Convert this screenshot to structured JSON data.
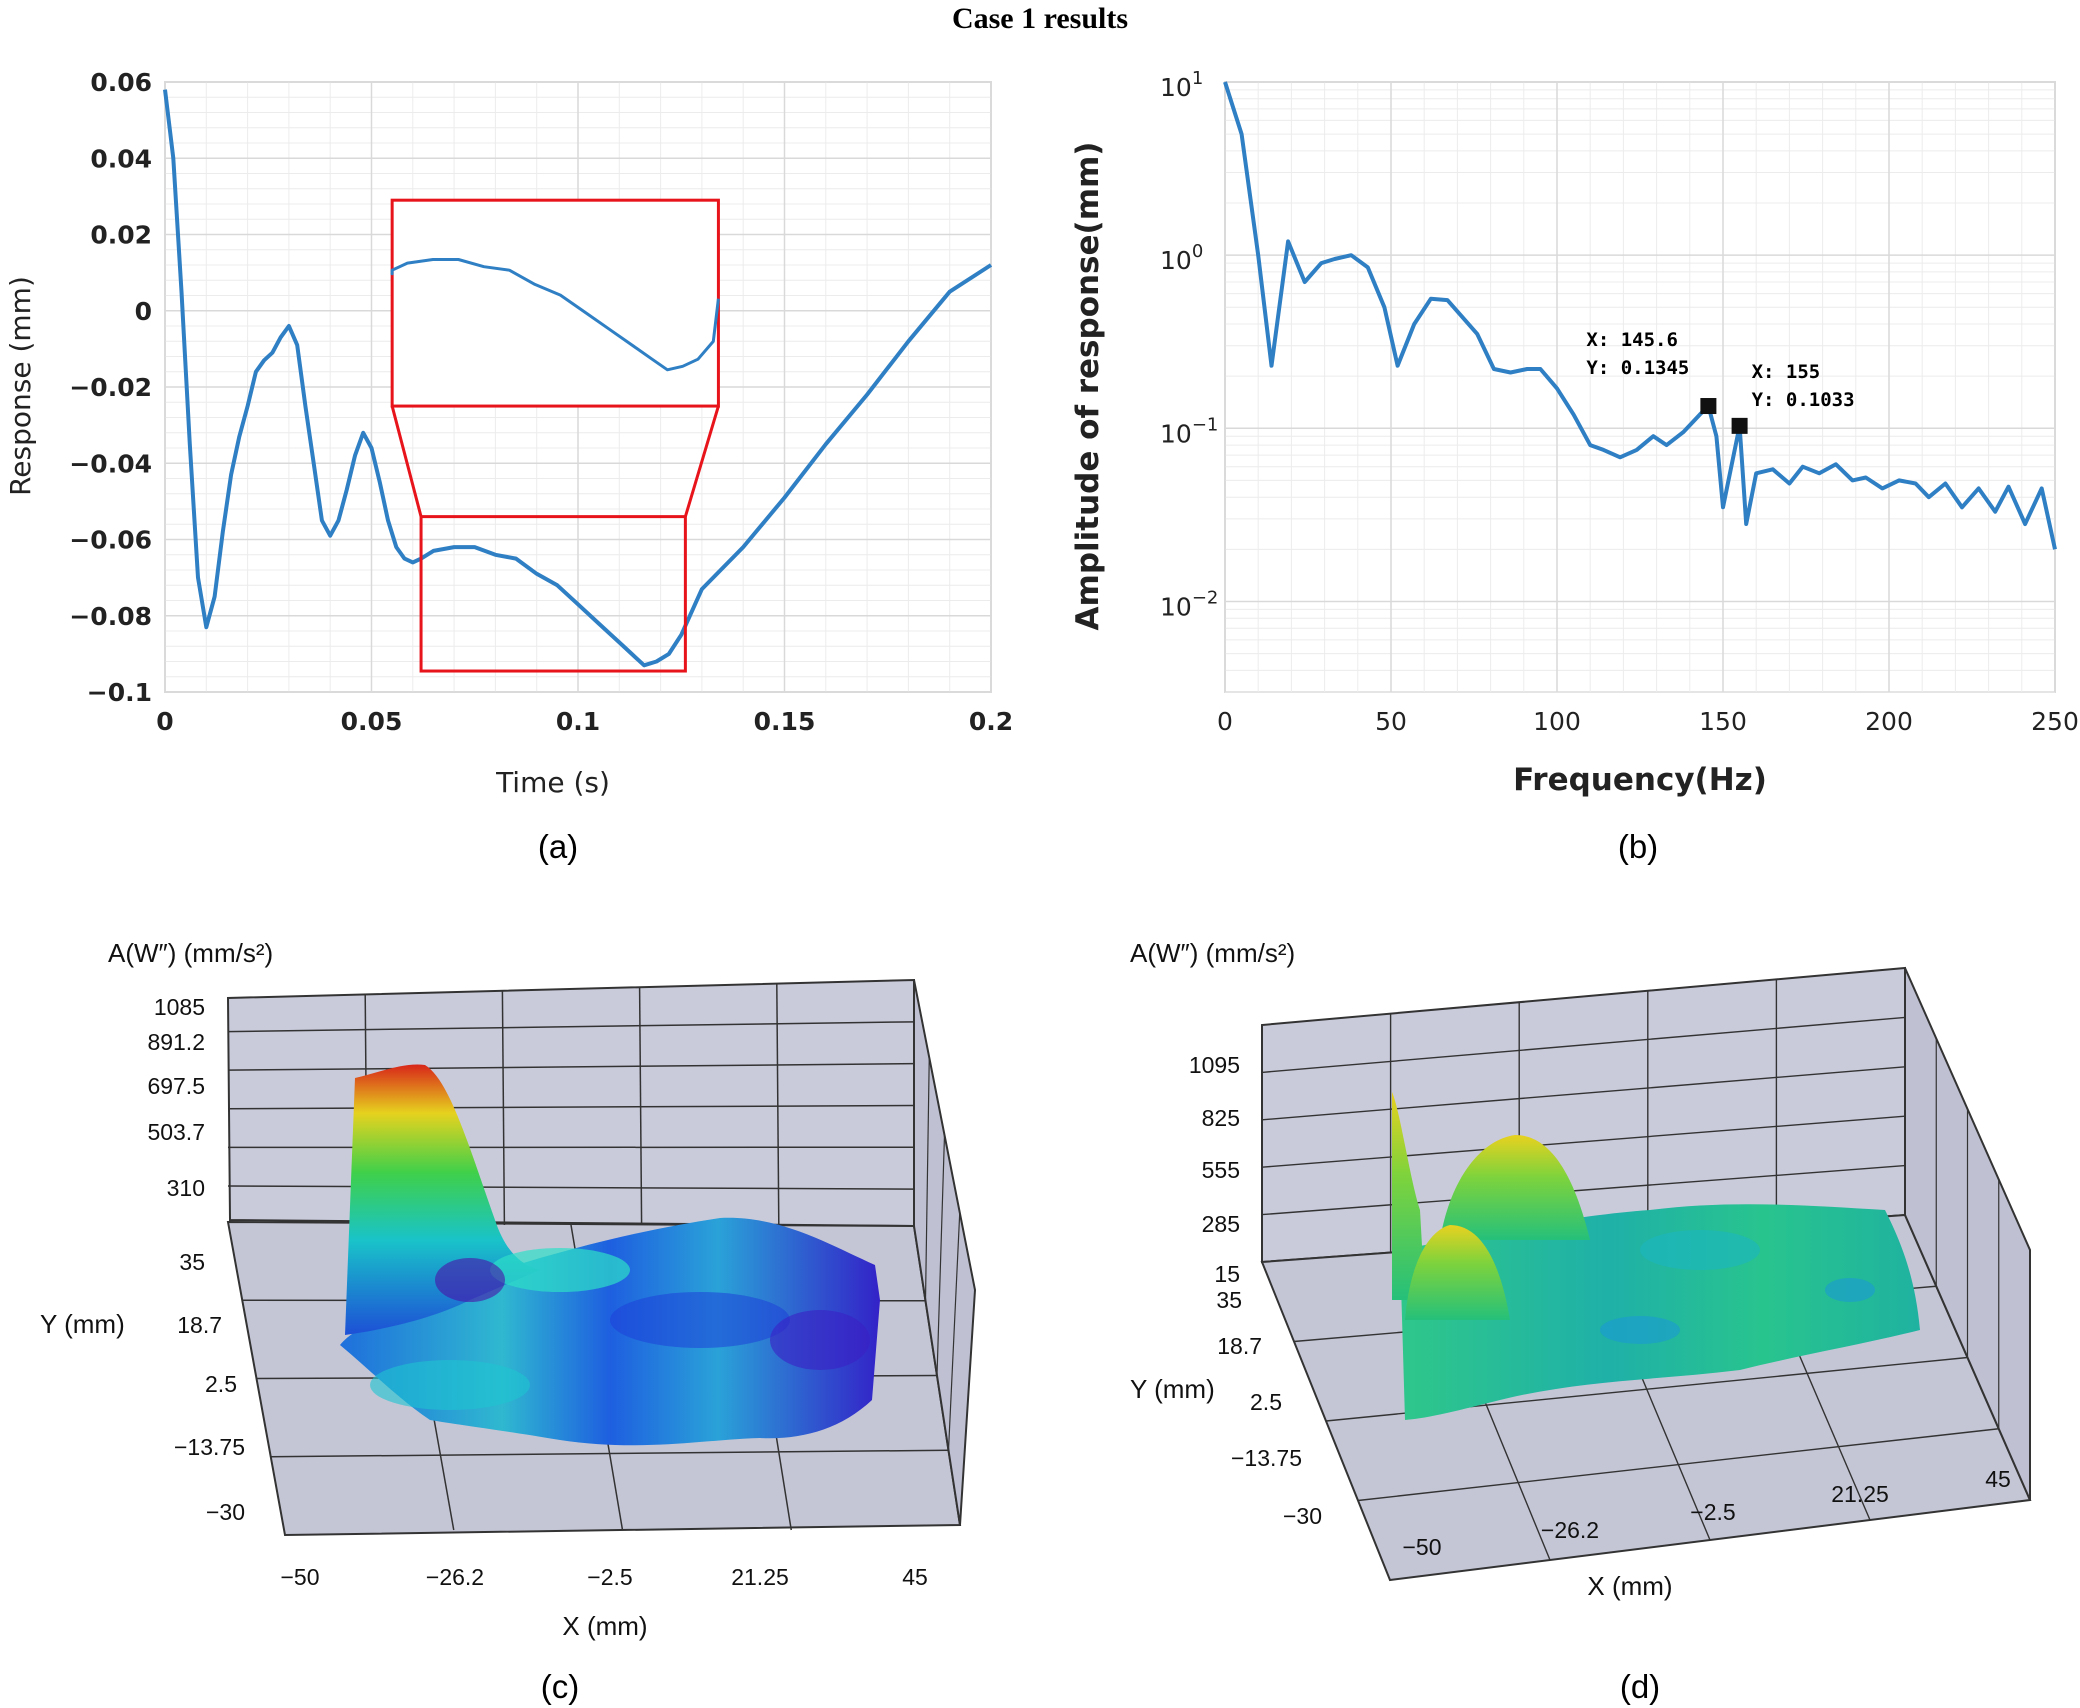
{
  "figure_title": "Case 1 results",
  "panels": {
    "a": {
      "label": "(a)"
    },
    "b": {
      "label": "(b)"
    },
    "c": {
      "label": "(c)"
    },
    "d": {
      "label": "(d)"
    }
  },
  "colors": {
    "line": "#2f7fc4",
    "zoom_box": "#e8141b",
    "grid": "#d9d9d9",
    "box3d_fill": "#c9cbdb",
    "box3d_edge": "#222222"
  },
  "chart_data": [
    {
      "id": "a",
      "type": "line",
      "xlabel": "Time (s)",
      "ylabel": "Response (mm)",
      "xlim": [
        0,
        0.2
      ],
      "ylim": [
        -0.1,
        0.06
      ],
      "xticks": [
        "0",
        "0.05",
        "0.1",
        "0.15",
        "0.2"
      ],
      "xtick_values": [
        0,
        0.05,
        0.1,
        0.15,
        0.2
      ],
      "yticks": [
        "0.06",
        "0.04",
        "0.02",
        "0",
        "−0.02",
        "−0.04",
        "−0.06",
        "−0.08",
        "−0.1"
      ],
      "ytick_values": [
        0.06,
        0.04,
        0.02,
        0,
        -0.02,
        -0.04,
        -0.06,
        -0.08,
        -0.1
      ],
      "grid": true,
      "series": [
        {
          "x": [
            0,
            0.002,
            0.004,
            0.006,
            0.008,
            0.01,
            0.012,
            0.014,
            0.016,
            0.018,
            0.02,
            0.022,
            0.024,
            0.026,
            0.028,
            0.03,
            0.032,
            0.034,
            0.036,
            0.038,
            0.04,
            0.042,
            0.044,
            0.046,
            0.048,
            0.05,
            0.052,
            0.054,
            0.056,
            0.058,
            0.06,
            0.062,
            0.065,
            0.07,
            0.075,
            0.08,
            0.085,
            0.09,
            0.095,
            0.1,
            0.105,
            0.11,
            0.113,
            0.116,
            0.119,
            0.122,
            0.125,
            0.13,
            0.14,
            0.15,
            0.16,
            0.17,
            0.18,
            0.19,
            0.2
          ],
          "y": [
            0.058,
            0.04,
            0.005,
            -0.035,
            -0.07,
            -0.083,
            -0.075,
            -0.058,
            -0.043,
            -0.033,
            -0.025,
            -0.016,
            -0.013,
            -0.011,
            -0.007,
            -0.004,
            -0.009,
            -0.025,
            -0.04,
            -0.055,
            -0.059,
            -0.055,
            -0.047,
            -0.038,
            -0.032,
            -0.036,
            -0.045,
            -0.055,
            -0.062,
            -0.065,
            -0.066,
            -0.065,
            -0.063,
            -0.062,
            -0.062,
            -0.064,
            -0.065,
            -0.069,
            -0.072,
            -0.077,
            -0.082,
            -0.087,
            -0.09,
            -0.093,
            -0.092,
            -0.09,
            -0.085,
            -0.073,
            -0.062,
            -0.049,
            -0.035,
            -0.022,
            -0.008,
            0.005,
            0.012
          ]
        }
      ],
      "zoom_box": {
        "x_range": [
          0.062,
          0.126
        ],
        "y_range": [
          -0.0945,
          -0.054
        ]
      },
      "inset": {
        "x_range": [
          0.055,
          0.134
        ],
        "y_range": [
          -0.025,
          0.029
        ]
      }
    },
    {
      "id": "b",
      "type": "line",
      "xlabel": "Frequency(Hz)",
      "ylabel": "Amplitude of response(mm)",
      "xlim": [
        0,
        250
      ],
      "ylim": [
        0.003,
        10
      ],
      "yscale": "log",
      "xticks": [
        "0",
        "50",
        "100",
        "150",
        "200",
        "250"
      ],
      "xtick_values": [
        0,
        50,
        100,
        150,
        200,
        250
      ],
      "yticks": [
        {
          "base": "10",
          "exp": "1",
          "value": 10
        },
        {
          "base": "10",
          "exp": "0",
          "value": 1
        },
        {
          "base": "10",
          "exp": "−1",
          "value": 0.1
        },
        {
          "base": "10",
          "exp": "−2",
          "value": 0.01
        }
      ],
      "grid": true,
      "series": [
        {
          "x": [
            0,
            5,
            10,
            14,
            19,
            24,
            29,
            33,
            38,
            43,
            48,
            52,
            57,
            62,
            67,
            71,
            76,
            81,
            86,
            91,
            95,
            100,
            105,
            110,
            114,
            119,
            124,
            129,
            133,
            138,
            143,
            145.6,
            148,
            150,
            155,
            157,
            160,
            165,
            170,
            174,
            179,
            184,
            189,
            193,
            198,
            203,
            208,
            212,
            217,
            222,
            227,
            232,
            236,
            241,
            246,
            250
          ],
          "y": [
            10,
            5,
            1,
            0.23,
            1.2,
            0.7,
            0.9,
            0.95,
            1,
            0.85,
            0.5,
            0.23,
            0.4,
            0.56,
            0.55,
            0.45,
            0.35,
            0.22,
            0.21,
            0.22,
            0.22,
            0.17,
            0.12,
            0.08,
            0.075,
            0.068,
            0.075,
            0.09,
            0.08,
            0.095,
            0.12,
            0.1345,
            0.09,
            0.035,
            0.1033,
            0.028,
            0.055,
            0.058,
            0.048,
            0.06,
            0.055,
            0.062,
            0.05,
            0.052,
            0.045,
            0.05,
            0.048,
            0.04,
            0.048,
            0.035,
            0.045,
            0.033,
            0.046,
            0.028,
            0.045,
            0.02
          ]
        }
      ],
      "datatips": [
        {
          "x": 145.6,
          "y": 0.1345,
          "line1": "X: 145.6",
          "line2": "Y: 0.1345"
        },
        {
          "x": 155,
          "y": 0.1033,
          "line1": "X: 155",
          "line2": "Y: 0.1033"
        }
      ]
    },
    {
      "id": "c",
      "type": "surface3d",
      "zlabel": "A(W″) (mm/s²)",
      "ylabel": "Y (mm)",
      "xlabel": "X (mm)",
      "zticks": [
        "1085",
        "891.2",
        "697.5",
        "503.7",
        "310"
      ],
      "yticks": [
        "35",
        "18.7",
        "2.5",
        "−13.75",
        "−30"
      ],
      "xticks": [
        "−50",
        "−26.2",
        "−2.5",
        "21.25",
        "45"
      ],
      "grid": true
    },
    {
      "id": "d",
      "type": "surface3d",
      "zlabel": "A(W″) (mm/s²)",
      "ylabel": "Y (mm)",
      "xlabel": "X (mm)",
      "zticks": [
        "1095",
        "825",
        "555",
        "285",
        "15"
      ],
      "yticks": [
        "35",
        "18.7",
        "2.5",
        "−13.75",
        "−30"
      ],
      "xticks": [
        "−50",
        "−26.2",
        "−2.5",
        "21.25",
        "45"
      ],
      "grid": true
    }
  ]
}
